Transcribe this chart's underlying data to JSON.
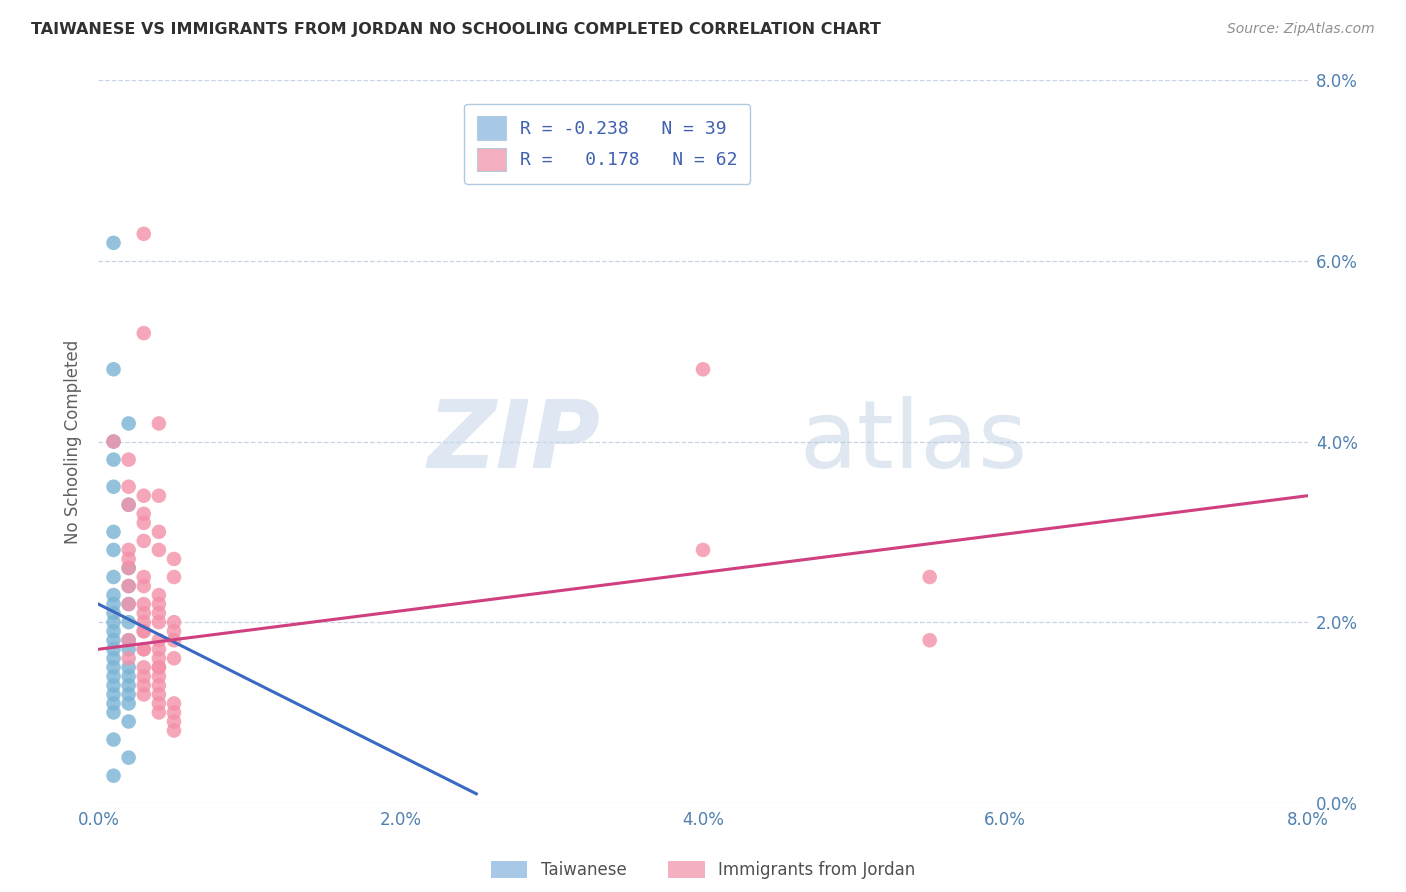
{
  "title": "TAIWANESE VS IMMIGRANTS FROM JORDAN NO SCHOOLING COMPLETED CORRELATION CHART",
  "source": "Source: ZipAtlas.com",
  "ylabel": "No Schooling Completed",
  "xlim": [
    0.0,
    0.08
  ],
  "ylim": [
    0.0,
    0.08
  ],
  "xtick_labels": [
    "0.0%",
    "2.0%",
    "4.0%",
    "6.0%",
    "8.0%"
  ],
  "xtick_vals": [
    0.0,
    0.02,
    0.04,
    0.06,
    0.08
  ],
  "ytick_labels_right": [
    "0.0%",
    "2.0%",
    "4.0%",
    "6.0%",
    "8.0%"
  ],
  "ytick_vals": [
    0.0,
    0.02,
    0.04,
    0.06,
    0.08
  ],
  "legend_r_items": [
    {
      "label": "R = -0.238   N = 39",
      "color": "#a8c8e8"
    },
    {
      "label": "R =   0.178   N = 62",
      "color": "#f4b0c0"
    }
  ],
  "legend_bottom": [
    {
      "label": "Taiwanese",
      "color": "#a8c8e8"
    },
    {
      "label": "Immigrants from Jordan",
      "color": "#f4b0c0"
    }
  ],
  "taiwanese_scatter": [
    [
      0.001,
      0.062
    ],
    [
      0.001,
      0.048
    ],
    [
      0.002,
      0.042
    ],
    [
      0.001,
      0.04
    ],
    [
      0.001,
      0.038
    ],
    [
      0.001,
      0.035
    ],
    [
      0.002,
      0.033
    ],
    [
      0.001,
      0.03
    ],
    [
      0.001,
      0.028
    ],
    [
      0.002,
      0.026
    ],
    [
      0.001,
      0.025
    ],
    [
      0.002,
      0.024
    ],
    [
      0.001,
      0.023
    ],
    [
      0.001,
      0.022
    ],
    [
      0.002,
      0.022
    ],
    [
      0.001,
      0.021
    ],
    [
      0.001,
      0.02
    ],
    [
      0.002,
      0.02
    ],
    [
      0.001,
      0.019
    ],
    [
      0.001,
      0.018
    ],
    [
      0.002,
      0.018
    ],
    [
      0.001,
      0.017
    ],
    [
      0.002,
      0.017
    ],
    [
      0.001,
      0.016
    ],
    [
      0.001,
      0.015
    ],
    [
      0.002,
      0.015
    ],
    [
      0.001,
      0.014
    ],
    [
      0.002,
      0.014
    ],
    [
      0.001,
      0.013
    ],
    [
      0.002,
      0.013
    ],
    [
      0.001,
      0.012
    ],
    [
      0.002,
      0.012
    ],
    [
      0.001,
      0.011
    ],
    [
      0.002,
      0.011
    ],
    [
      0.001,
      0.01
    ],
    [
      0.002,
      0.009
    ],
    [
      0.001,
      0.007
    ],
    [
      0.002,
      0.005
    ],
    [
      0.001,
      0.003
    ]
  ],
  "jordan_scatter": [
    [
      0.003,
      0.063
    ],
    [
      0.003,
      0.052
    ],
    [
      0.004,
      0.042
    ],
    [
      0.001,
      0.04
    ],
    [
      0.002,
      0.038
    ],
    [
      0.002,
      0.035
    ],
    [
      0.003,
      0.034
    ],
    [
      0.004,
      0.034
    ],
    [
      0.002,
      0.033
    ],
    [
      0.003,
      0.032
    ],
    [
      0.003,
      0.031
    ],
    [
      0.004,
      0.03
    ],
    [
      0.003,
      0.029
    ],
    [
      0.002,
      0.028
    ],
    [
      0.004,
      0.028
    ],
    [
      0.005,
      0.027
    ],
    [
      0.002,
      0.027
    ],
    [
      0.002,
      0.026
    ],
    [
      0.005,
      0.025
    ],
    [
      0.003,
      0.025
    ],
    [
      0.002,
      0.024
    ],
    [
      0.003,
      0.024
    ],
    [
      0.004,
      0.023
    ],
    [
      0.002,
      0.022
    ],
    [
      0.004,
      0.022
    ],
    [
      0.003,
      0.022
    ],
    [
      0.003,
      0.021
    ],
    [
      0.004,
      0.021
    ],
    [
      0.003,
      0.02
    ],
    [
      0.005,
      0.02
    ],
    [
      0.004,
      0.02
    ],
    [
      0.003,
      0.019
    ],
    [
      0.003,
      0.019
    ],
    [
      0.005,
      0.019
    ],
    [
      0.002,
      0.018
    ],
    [
      0.004,
      0.018
    ],
    [
      0.005,
      0.018
    ],
    [
      0.003,
      0.017
    ],
    [
      0.004,
      0.017
    ],
    [
      0.003,
      0.017
    ],
    [
      0.002,
      0.016
    ],
    [
      0.004,
      0.016
    ],
    [
      0.005,
      0.016
    ],
    [
      0.003,
      0.015
    ],
    [
      0.004,
      0.015
    ],
    [
      0.004,
      0.015
    ],
    [
      0.003,
      0.014
    ],
    [
      0.004,
      0.014
    ],
    [
      0.003,
      0.013
    ],
    [
      0.004,
      0.013
    ],
    [
      0.004,
      0.012
    ],
    [
      0.003,
      0.012
    ],
    [
      0.005,
      0.011
    ],
    [
      0.004,
      0.011
    ],
    [
      0.005,
      0.01
    ],
    [
      0.004,
      0.01
    ],
    [
      0.005,
      0.009
    ],
    [
      0.005,
      0.008
    ],
    [
      0.04,
      0.048
    ],
    [
      0.04,
      0.028
    ],
    [
      0.055,
      0.025
    ],
    [
      0.055,
      0.018
    ]
  ],
  "taiwanese_line_x": [
    0.0,
    0.025
  ],
  "taiwanese_line_y": [
    0.022,
    0.001
  ],
  "jordan_line_x": [
    0.0,
    0.08
  ],
  "jordan_line_y": [
    0.017,
    0.034
  ],
  "scatter_color_taiwanese": "#7ab3d4",
  "scatter_color_jordan": "#f490a8",
  "line_color_taiwanese": "#3a6abf",
  "line_color_jordan": "#d04080",
  "watermark_zip": "ZIP",
  "watermark_atlas": "atlas",
  "background_color": "#ffffff",
  "grid_color": "#c8d4e4",
  "title_color": "#303030",
  "axis_tick_color": "#5080b0",
  "legend_border_color": "#b0c8e0",
  "legend_r_color": "#4060b0"
}
